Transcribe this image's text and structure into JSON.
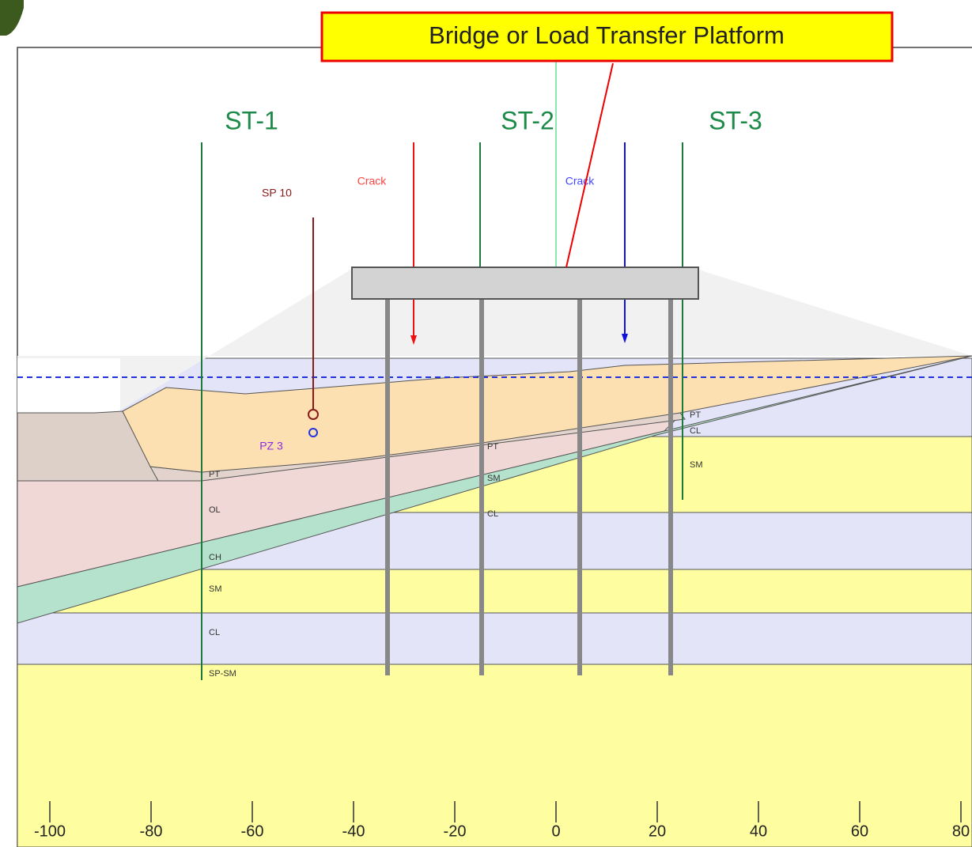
{
  "callout": "Bridge or Load Transfer Platform",
  "boreholes": [
    {
      "label": "ST-1",
      "layers": [
        "PT",
        "OL",
        "CH",
        "SM",
        "CL",
        "SP-SM"
      ]
    },
    {
      "label": "ST-2",
      "layers": [
        "PT",
        "SM",
        "CL"
      ]
    },
    {
      "label": "ST-3",
      "layers": [
        "PT",
        "CL",
        "SM"
      ]
    }
  ],
  "instruments": {
    "settlement_plate": "SP 10",
    "piezometer": "PZ 3",
    "crack_left": "Crack",
    "crack_right": "Crack"
  },
  "axis": {
    "ticks": [
      -100,
      -80,
      -60,
      -40,
      -20,
      0,
      20,
      40,
      60,
      80
    ]
  }
}
